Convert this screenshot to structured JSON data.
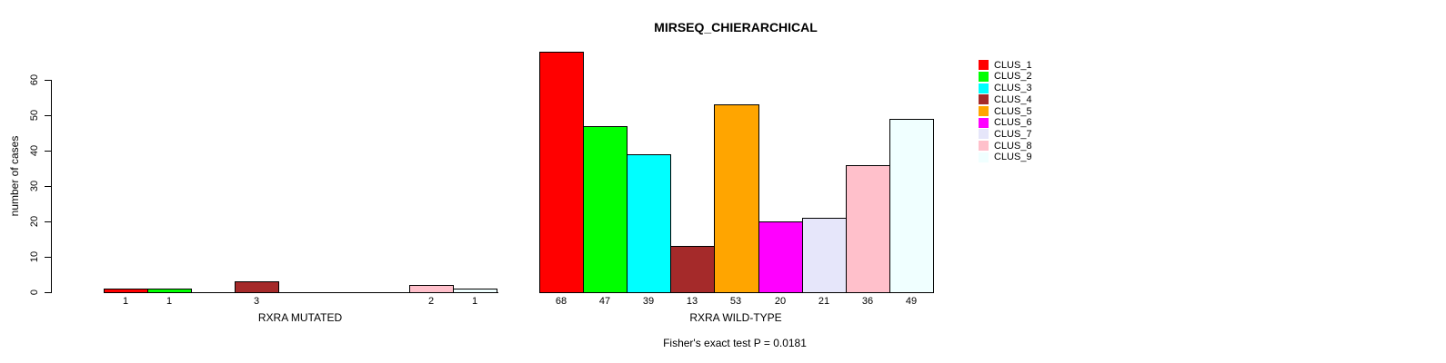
{
  "title": "MIRSEQ_CHIERARCHICAL",
  "footer": "Fisher's exact test P = 0.0181",
  "y_axis": {
    "label": "number of cases",
    "ticks": [
      0,
      10,
      20,
      30,
      40,
      50,
      60
    ]
  },
  "legend": {
    "entries": [
      {
        "label": "CLUS_1",
        "color": "#FF0000"
      },
      {
        "label": "CLUS_2",
        "color": "#00FF00"
      },
      {
        "label": "CLUS_3",
        "color": "#00FFFF"
      },
      {
        "label": "CLUS_4",
        "color": "#A52A2A"
      },
      {
        "label": "CLUS_5",
        "color": "#FFA500"
      },
      {
        "label": "CLUS_6",
        "color": "#FF00FF"
      },
      {
        "label": "CLUS_7",
        "color": "#E6E6FA"
      },
      {
        "label": "CLUS_8",
        "color": "#FFC0CB"
      },
      {
        "label": "CLUS_9",
        "color": "#F0FFFF"
      }
    ]
  },
  "chart_data": {
    "type": "bar",
    "title": "MIRSEQ_CHIERARCHICAL",
    "ylabel": "number of cases",
    "categories": [
      "CLUS_1",
      "CLUS_2",
      "CLUS_3",
      "CLUS_4",
      "CLUS_5",
      "CLUS_6",
      "CLUS_7",
      "CLUS_8",
      "CLUS_9"
    ],
    "colors": [
      "#FF0000",
      "#00FF00",
      "#00FFFF",
      "#A52A2A",
      "#FFA500",
      "#FF00FF",
      "#E6E6FA",
      "#FFC0CB",
      "#F0FFFF"
    ],
    "bar_border_color": "#000000",
    "series": [
      {
        "name": "RXRA MUTATED",
        "values": [
          1,
          1,
          0,
          3,
          0,
          0,
          0,
          2,
          1
        ]
      },
      {
        "name": "RXRA WILD-TYPE",
        "values": [
          68,
          47,
          39,
          13,
          53,
          20,
          21,
          36,
          49
        ]
      }
    ],
    "ylim": [
      0,
      68
    ],
    "yticks": [
      0,
      10,
      20,
      30,
      40,
      50,
      60
    ],
    "grid": false,
    "legend_position": "topright",
    "value_labels": "shown under each nonzero bar",
    "annotation": "Fisher's exact test P = 0.0181"
  }
}
